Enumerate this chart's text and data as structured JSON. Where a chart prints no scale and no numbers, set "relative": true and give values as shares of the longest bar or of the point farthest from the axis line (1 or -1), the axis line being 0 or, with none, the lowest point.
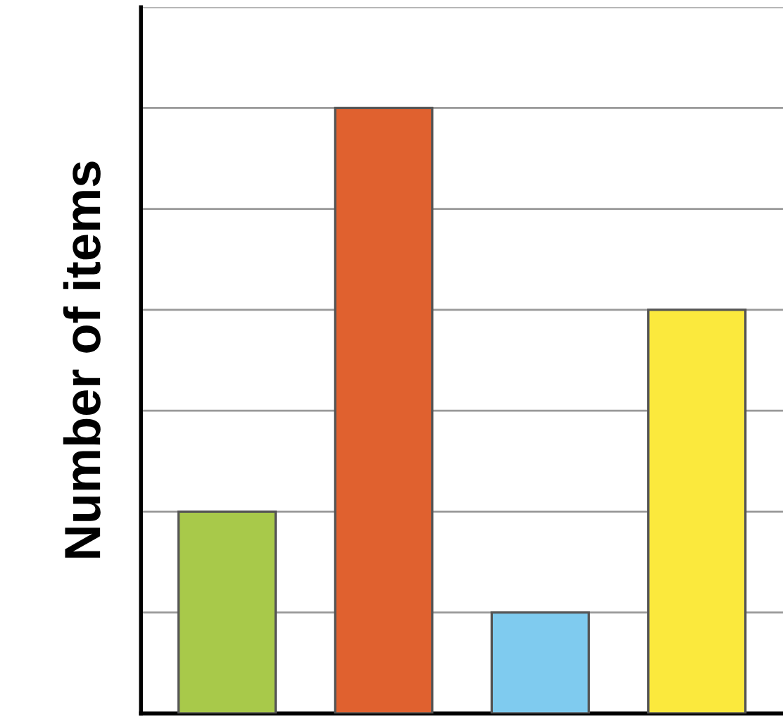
{
  "chart_data": {
    "type": "bar",
    "ylabel": "Number of items",
    "relative": true,
    "grid": "y",
    "categories": [
      null,
      null,
      null,
      null
    ],
    "values": [
      0.3333,
      1,
      0.1667,
      0.6667
    ],
    "colors": [
      "#a8c94a",
      "#e0612f",
      "#7fcbef",
      "#fbe93d"
    ]
  }
}
